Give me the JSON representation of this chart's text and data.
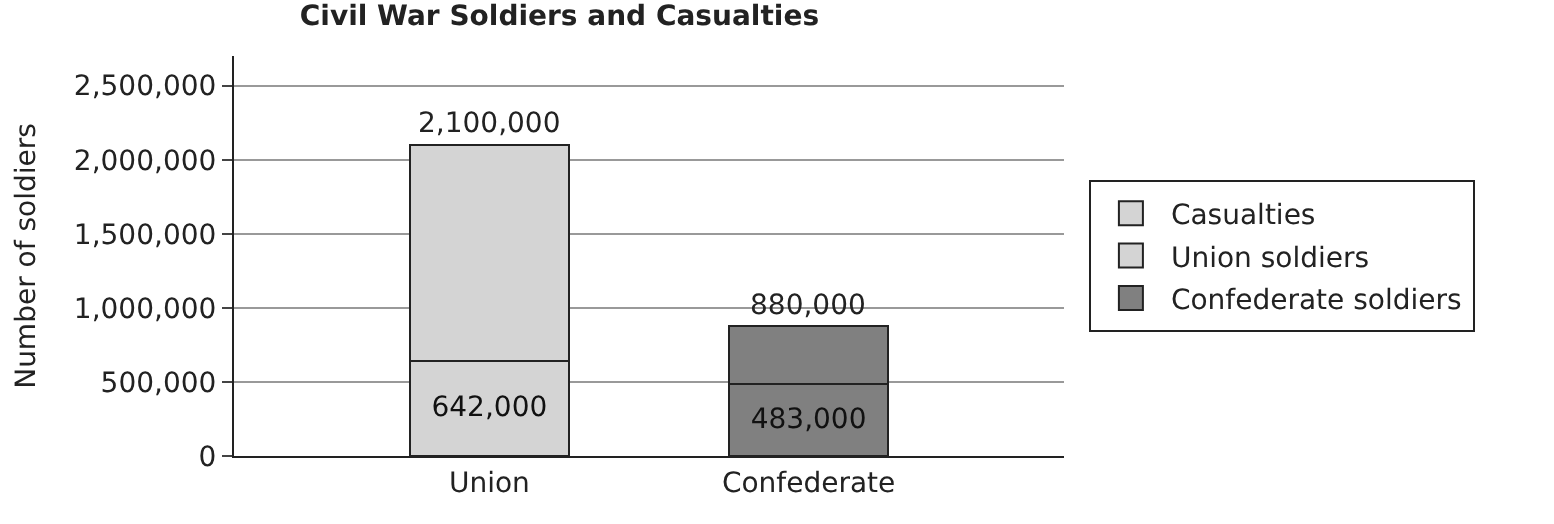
{
  "chart_data": {
    "type": "bar",
    "stacked": true,
    "title": "Civil War Soldiers and Casualties",
    "ylabel": "Number of soldiers",
    "categories": [
      "Union",
      "Confederate"
    ],
    "series": [
      {
        "name": "Casualties",
        "colors": [
          "#d4d4d4",
          "#808080"
        ],
        "values": [
          642000,
          483000
        ],
        "value_labels": [
          "642,000",
          "483,000"
        ]
      },
      {
        "name": "Union soldiers",
        "color": "#d4d4d4",
        "values": [
          1458000,
          null
        ]
      },
      {
        "name": "Confederate soldiers",
        "color": "#808080",
        "values": [
          null,
          397000
        ]
      }
    ],
    "totals": [
      "2,100,000",
      "880,000"
    ],
    "ylim": [
      0,
      2700000
    ],
    "yticks": [
      0,
      {
        "value": 500000,
        "label": "500,000"
      },
      {
        "value": 1000000,
        "label": "1,000,000"
      },
      {
        "value": 1500000,
        "label": "1,500,000"
      },
      {
        "value": 2000000,
        "label": "2,000,000"
      },
      {
        "value": 2500000,
        "label": "2,500,000"
      }
    ],
    "grid": "y",
    "legend": "right"
  }
}
